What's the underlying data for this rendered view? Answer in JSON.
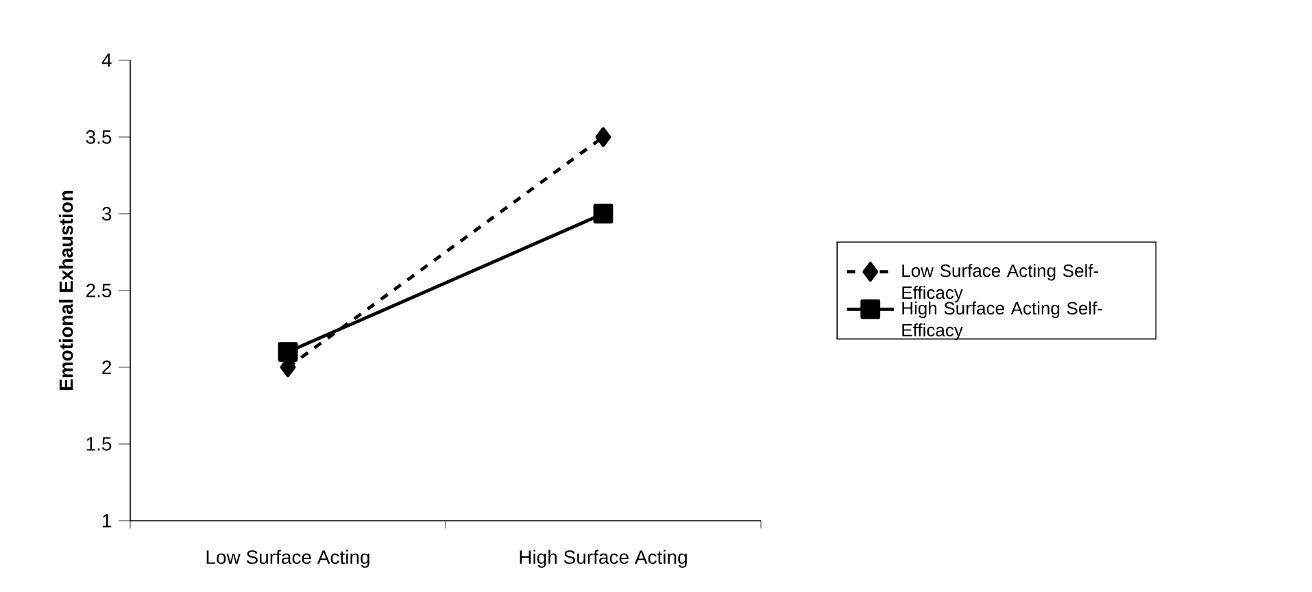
{
  "chart_data": {
    "type": "line",
    "ylabel": "Emotional Exhaustion",
    "categories": [
      "Low Surface Acting",
      "High Surface Acting"
    ],
    "series": [
      {
        "name": "Low Surface Acting Self-Efficacy",
        "color": "#000000",
        "values": [
          2.0,
          3.5
        ],
        "marker": "diamond",
        "line_style": "dashed"
      },
      {
        "name": "High Surface Acting Self-Efficacy",
        "color": "#000000",
        "values": [
          2.1,
          3.0
        ],
        "marker": "square",
        "line_style": "solid"
      }
    ],
    "ylim": [
      1,
      4
    ],
    "yticks": [
      1,
      1.5,
      2,
      2.5,
      3,
      3.5,
      4
    ],
    "legend": "right"
  }
}
